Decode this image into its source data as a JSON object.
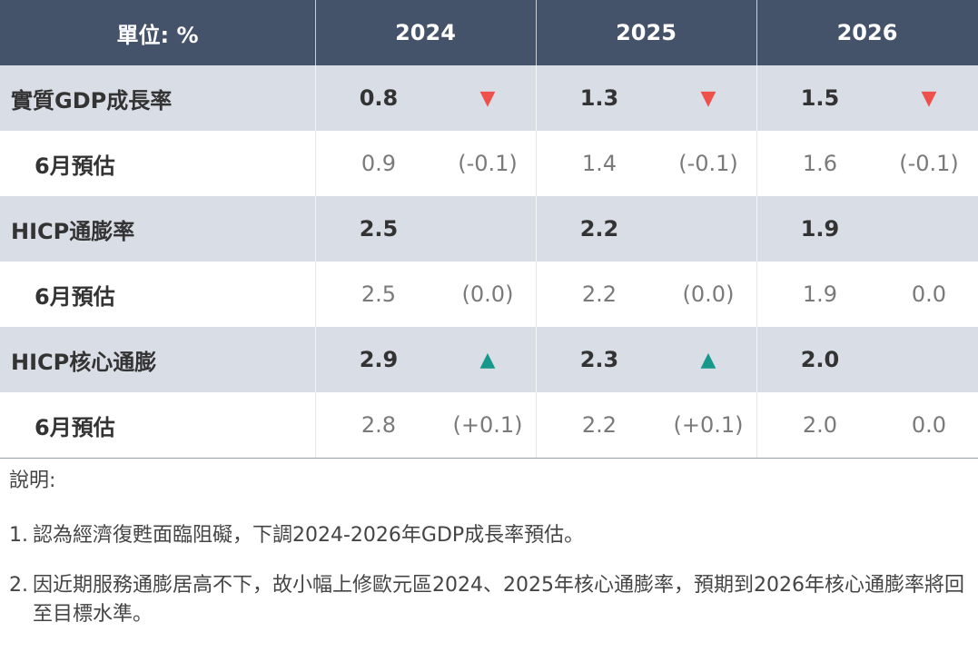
{
  "table": {
    "header": [
      "單位: %",
      "2024",
      "2025",
      "2026"
    ],
    "rows": [
      {
        "label": "實質GDP成長率",
        "cells": [
          "0.8",
          "▼",
          "1.3",
          "▼",
          "1.5",
          "▼"
        ],
        "mark_color": "#f0504c",
        "style": "main"
      },
      {
        "label": "6月預估",
        "cells": [
          "0.9",
          "(-0.1)",
          "1.4",
          "(-0.1)",
          "1.6",
          "(-0.1)"
        ],
        "style": "sub"
      },
      {
        "label": "HICP通膨率",
        "cells": [
          "2.5",
          null,
          "2.2",
          null,
          "1.9",
          null
        ],
        "style": "main"
      },
      {
        "label": "6月預估",
        "cells": [
          "2.5",
          "(0.0)",
          "2.2",
          "(0.0)",
          "1.9",
          "0.0"
        ],
        "style": "sub"
      },
      {
        "label": "HICP核心通膨",
        "cells": [
          "2.9",
          "▲",
          "2.3",
          "▲",
          "2.0",
          null
        ],
        "mark_color": "#16998b",
        "style": "main"
      },
      {
        "label": "6月預估",
        "cells": [
          "2.8",
          "(+0.1)",
          "2.2",
          "(+0.1)",
          "2.0",
          "0.0"
        ],
        "style": "sub"
      }
    ]
  },
  "notes": {
    "title": "說明:",
    "items": [
      {
        "number": "1.",
        "text": "認為經濟復甦面臨阻礙，下調2024-2026年GDP成長率預估。"
      },
      {
        "number": "2.",
        "text": "因近期服務通膨居高不下，故小幅上修歐元區2024、2025年核心通膨率，預期到2026年核心通膨率將回至目標水準。"
      }
    ]
  }
}
